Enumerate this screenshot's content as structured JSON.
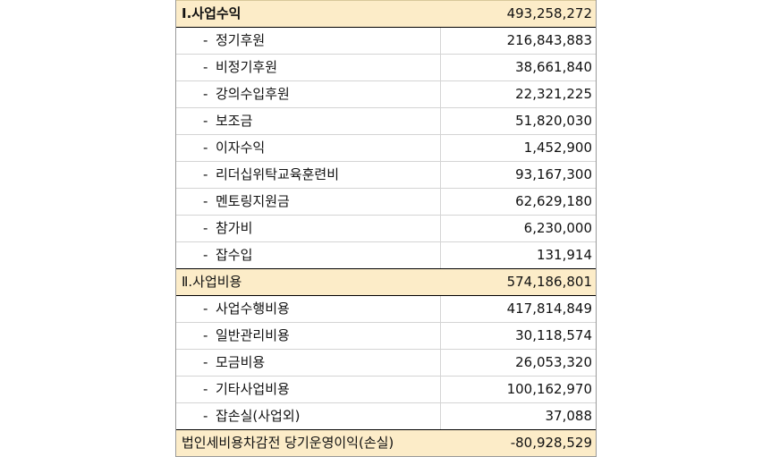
{
  "sections": [
    {
      "title": "Ⅰ.사업수익",
      "amount": "493,258,272",
      "items": [
        {
          "label": "정기후원",
          "amount": "216,843,883"
        },
        {
          "label": "비정기후원",
          "amount": "38,661,840"
        },
        {
          "label": "강의수입후원",
          "amount": "22,321,225"
        },
        {
          "label": "보조금",
          "amount": "51,820,030"
        },
        {
          "label": "이자수익",
          "amount": "1,452,900"
        },
        {
          "label": "리더십위탁교육훈련비",
          "amount": "93,167,300"
        },
        {
          "label": "멘토링지원금",
          "amount": "62,629,180"
        },
        {
          "label": "참가비",
          "amount": "6,230,000"
        },
        {
          "label": "잡수입",
          "amount": "131,914"
        }
      ]
    },
    {
      "title": "Ⅱ.사업비용",
      "amount": "574,186,801",
      "items": [
        {
          "label": "사업수행비용",
          "amount": "417,814,849"
        },
        {
          "label": "일반관리비용",
          "amount": "30,118,574"
        },
        {
          "label": "모금비용",
          "amount": "26,053,320"
        },
        {
          "label": "기타사업비용",
          "amount": "100,162,970"
        },
        {
          "label": "잡손실(사업외)",
          "amount": "37,088"
        }
      ]
    }
  ],
  "item_prefix": "-",
  "total": {
    "label": "법인세비용차감전 당기운영이익(손실)",
    "amount": "-80,928,529"
  },
  "colors": {
    "section_fill": "#fcecc8",
    "grid_line": "#d4d4d4"
  }
}
